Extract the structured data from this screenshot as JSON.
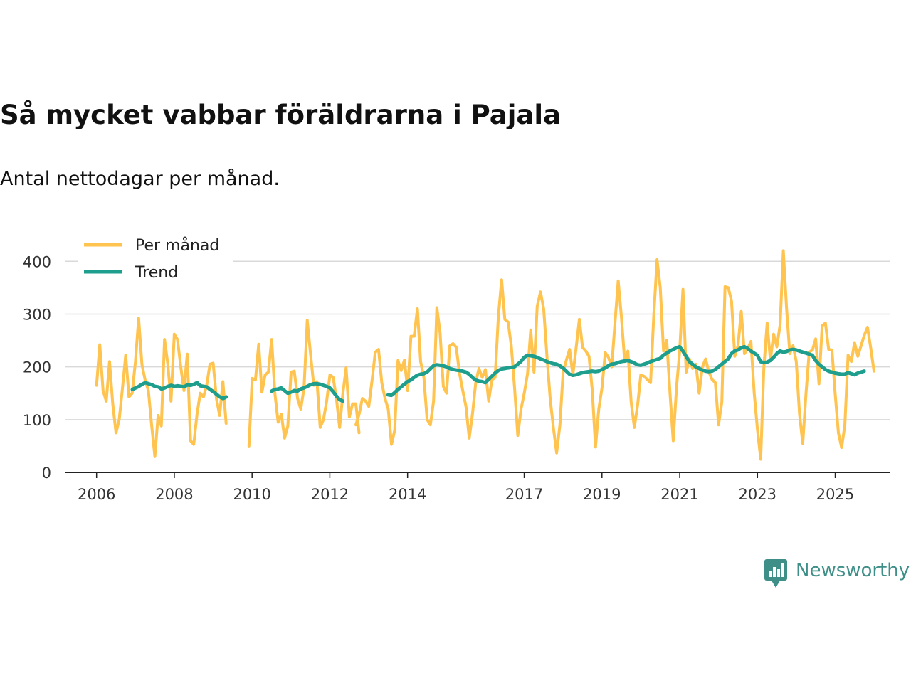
{
  "title": "Så mycket vabbar föräldrarna i Pajala",
  "subtitle": "Antal nettodagar per månad.",
  "brand": {
    "name": "Newsworthy",
    "icon": "newsworthy-logo-icon",
    "color": "#3d8f88"
  },
  "chart_data": {
    "type": "line",
    "title": "Så mycket vabbar föräldrarna i Pajala",
    "subtitle": "Antal nettodagar per månad.",
    "xlabel": "",
    "ylabel": "",
    "xlim": [
      2005.2,
      2026.4
    ],
    "ylim": [
      0,
      430
    ],
    "yticks": [
      0,
      100,
      200,
      300,
      400
    ],
    "xticks": [
      {
        "value": 2006,
        "label": "2006"
      },
      {
        "value": 2008,
        "label": "2008"
      },
      {
        "value": 2010,
        "label": "2010"
      },
      {
        "value": 2012,
        "label": "2012"
      },
      {
        "value": 2014,
        "label": "2014"
      },
      {
        "value": 2017,
        "label": "2017"
      },
      {
        "value": 2019,
        "label": "2019"
      },
      {
        "value": 2021,
        "label": "2021"
      },
      {
        "value": 2023,
        "label": "2023"
      },
      {
        "value": 2025,
        "label": "2025"
      }
    ],
    "grid": true,
    "legend": "top-left",
    "series": [
      {
        "name": "Per månad",
        "color": "#ffc34f",
        "segments": [
          {
            "start": 2006.0,
            "step": 0.0833,
            "values": [
              165,
              242,
              155,
              135,
              210,
              130,
              75,
              100,
              160,
              222,
              143,
              150,
              210,
              292,
              205,
              175,
              155,
              90,
              30,
              108,
              88,
              252,
              205,
              135,
              262,
              252,
              200,
              155,
              224,
              60,
              53,
              110,
              150,
              143,
              165,
              205,
              207,
              140,
              108,
              172,
              93
            ]
          },
          {
            "start": 2009.92,
            "step": 0.0833,
            "values": [
              50,
              178,
              175,
              243,
              152,
              185,
              190,
              252,
              150,
              95,
              110,
              65,
              88,
              190,
              192,
              140,
              120,
              160,
              288,
              225,
              165,
              172,
              85,
              100,
              135,
              185,
              180,
              140,
              85,
              150,
              198,
              105,
              130,
              130,
              75
            ]
          },
          {
            "start": 2012.67,
            "step": 0.0833,
            "values": [
              90,
              110,
              140,
              135,
              125,
              175,
              228,
              233,
              170,
              140,
              120,
              53,
              80,
              212,
              193,
              213,
              155,
              258,
              258,
              310,
              210,
              180,
              100,
              90,
              135,
              312,
              265,
              163,
              150,
              240,
              244,
              237,
              188,
              155,
              125,
              65,
              110,
              170,
              197,
              180,
              195,
              135,
              175,
              180,
              295,
              365,
              290,
              285,
              240,
              160,
              70,
              120,
              150,
              187,
              270,
              190,
              315,
              342,
              310,
              220,
              140,
              84,
              37,
              90,
              190,
              213,
              233,
              185,
              235,
              290,
              237,
              230,
              220,
              155,
              48,
              120,
              160,
              227,
              218,
              200,
              282,
              363,
              295,
              210,
              230,
              133,
              85,
              128,
              185,
              182,
              176,
              170,
              298,
              403,
              350,
              230,
              250,
              150,
              60,
              160,
              230,
              347,
              190,
              215,
              197,
              205,
              150,
              200,
              215,
              190,
              176,
              170,
              90,
              133,
              352,
              350,
              325,
              220,
              240,
              305,
              225,
              235,
              248,
              150,
              82,
              25,
              200,
              283,
              213,
              262,
              238,
              280,
              420,
              310,
              225,
              240,
              210,
              110,
              55,
              150,
              228,
              232,
              253,
              168,
              278,
              283,
              233,
              232,
              150,
              75,
              47,
              90,
              222,
              210,
              246,
              220,
              240,
              260,
              275,
              235,
              192
            ]
          }
        ]
      },
      {
        "name": "Trend",
        "color": "#1e9e8c",
        "segments": [
          {
            "start": 2006.92,
            "step": 0.0833,
            "values": [
              157,
              160,
              163,
              167,
              170,
              168,
              166,
              163,
              162,
              158,
              160,
              163,
              165,
              163,
              164,
              163,
              162,
              166,
              165,
              167,
              170,
              164,
              163,
              162,
              157,
              153,
              148,
              143,
              140,
              143
            ]
          },
          {
            "start": 2010.5,
            "step": 0.0833,
            "values": [
              154,
              157,
              158,
              160,
              155,
              150,
              152,
              155,
              154,
              158,
              160,
              163,
              166,
              168,
              168,
              167,
              165,
              163,
              160,
              153,
              145,
              138,
              135
            ]
          },
          {
            "start": 2013.5,
            "step": 0.0833,
            "values": [
              147,
              146,
              151,
              157,
              162,
              167,
              172,
              175,
              180,
              184,
              186,
              187,
              190,
              196,
              202,
              204,
              203,
              202,
              200,
              197,
              195,
              194,
              193,
              192,
              190,
              186,
              180,
              175,
              173,
              172,
              170,
              176,
              182,
              188,
              193,
              196,
              197,
              198,
              199,
              200,
              205,
              210,
              218,
              222,
              221,
              220,
              218,
              215,
              213,
              210,
              208,
              206,
              205,
              202,
              198,
              192,
              186,
              184,
              185,
              187,
              189,
              190,
              191,
              192,
              191,
              192,
              195,
              198,
              202,
              205,
              206,
              208,
              210,
              211,
              212,
              210,
              207,
              204,
              203,
              205,
              207,
              210,
              212,
              214,
              216,
              222,
              226,
              230,
              233,
              236,
              238,
              230,
              220,
              210,
              205,
              200,
              197,
              194,
              192,
              191,
              192,
              195,
              200,
              205,
              210,
              215,
              225,
              230,
              232,
              236,
              238,
              235,
              230,
              226,
              222,
              210,
              208,
              209,
              212,
              218,
              225,
              230,
              228,
              229,
              232,
              233,
              232,
              230,
              228,
              226,
              224,
              222,
              212,
              205,
              200,
              195,
              192,
              190,
              188,
              187,
              186,
              186,
              189,
              187,
              185,
              188,
              190,
              192
            ]
          }
        ]
      }
    ]
  }
}
